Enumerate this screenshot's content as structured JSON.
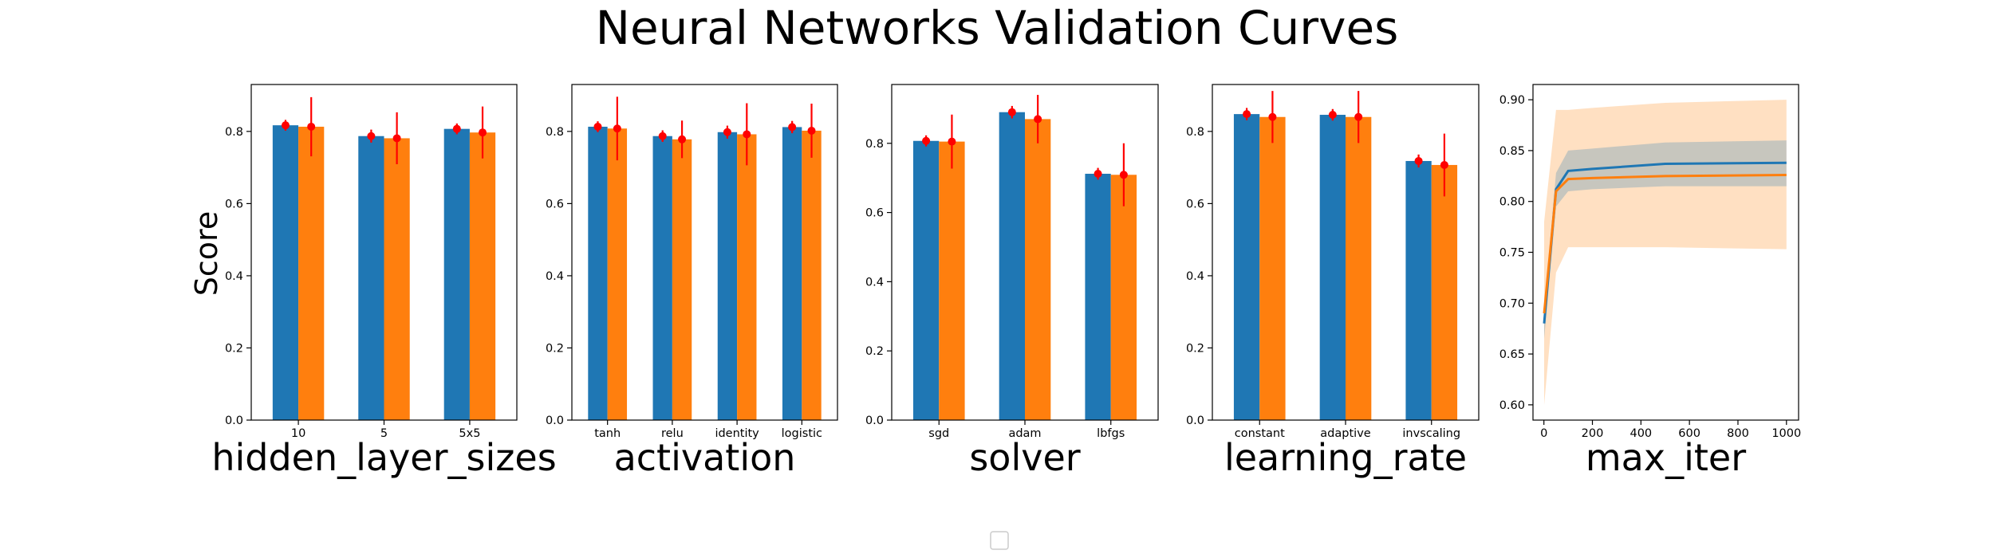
{
  "figure": {
    "title": "Neural Networks Validation Curves",
    "shared_ylabel": "Score",
    "legend_entries": []
  },
  "colors": {
    "train": "#1f77b4",
    "test": "#ff7f0e",
    "error": "#ff0000",
    "band_train": "#1f77b4",
    "band_test": "#ffbb78"
  },
  "chart_data": [
    {
      "type": "bar",
      "xlabel": "hidden_layer_sizes",
      "ylabel": "Score",
      "ylim": [
        0,
        0.93
      ],
      "yticks": [
        0.0,
        0.2,
        0.4,
        0.6,
        0.8
      ],
      "categories": [
        "10",
        "5",
        "5x5"
      ],
      "series": [
        {
          "values": [
            0.817,
            0.787,
            0.807
          ],
          "errors": [
            0.015,
            0.018,
            0.015
          ]
        },
        {
          "values": [
            0.813,
            0.781,
            0.797
          ],
          "errors": [
            0.082,
            0.072,
            0.072
          ]
        }
      ]
    },
    {
      "type": "bar",
      "xlabel": "activation",
      "ylabel": "",
      "ylim": [
        0,
        0.93
      ],
      "yticks": [
        0.0,
        0.2,
        0.4,
        0.6,
        0.8
      ],
      "categories": [
        "tanh",
        "relu",
        "identity",
        "logistic"
      ],
      "series": [
        {
          "values": [
            0.813,
            0.787,
            0.798,
            0.812
          ],
          "errors": [
            0.015,
            0.016,
            0.018,
            0.017
          ]
        },
        {
          "values": [
            0.808,
            0.778,
            0.792,
            0.802
          ],
          "errors": [
            0.088,
            0.052,
            0.086,
            0.075
          ]
        }
      ]
    },
    {
      "type": "bar",
      "xlabel": "solver",
      "ylabel": "",
      "ylim": [
        0,
        0.97
      ],
      "yticks": [
        0.0,
        0.2,
        0.4,
        0.6,
        0.8
      ],
      "categories": [
        "sgd",
        "adam",
        "lbfgs"
      ],
      "series": [
        {
          "values": [
            0.807,
            0.89,
            0.712
          ],
          "errors": [
            0.016,
            0.018,
            0.017
          ]
        },
        {
          "values": [
            0.805,
            0.87,
            0.709
          ],
          "errors": [
            0.078,
            0.07,
            0.091
          ]
        }
      ]
    },
    {
      "type": "bar",
      "xlabel": "learning_rate",
      "ylabel": "",
      "ylim": [
        0,
        0.93
      ],
      "yticks": [
        0.0,
        0.2,
        0.4,
        0.6,
        0.8
      ],
      "categories": [
        "constant",
        "adaptive",
        "invscaling"
      ],
      "series": [
        {
          "values": [
            0.848,
            0.846,
            0.718
          ],
          "errors": [
            0.017,
            0.016,
            0.018
          ]
        },
        {
          "values": [
            0.84,
            0.84,
            0.707
          ],
          "errors": [
            0.072,
            0.072,
            0.087
          ]
        }
      ]
    },
    {
      "type": "line",
      "xlabel": "max_iter",
      "ylabel": "",
      "xlim": [
        -45,
        1050
      ],
      "ylim": [
        0.585,
        0.915
      ],
      "xticks": [
        0,
        200,
        400,
        600,
        800,
        1000
      ],
      "yticks": [
        0.6,
        0.65,
        0.7,
        0.75,
        0.8,
        0.85,
        0.9
      ],
      "x": [
        1,
        50,
        100,
        200,
        500,
        1000
      ],
      "series": [
        {
          "values": [
            0.68,
            0.812,
            0.83,
            0.832,
            0.837,
            0.838
          ],
          "lower": [
            0.665,
            0.795,
            0.81,
            0.812,
            0.815,
            0.815
          ],
          "upper": [
            0.695,
            0.828,
            0.85,
            0.852,
            0.858,
            0.86
          ]
        },
        {
          "values": [
            0.69,
            0.81,
            0.822,
            0.823,
            0.825,
            0.826
          ],
          "lower": [
            0.6,
            0.73,
            0.755,
            0.755,
            0.755,
            0.753
          ],
          "upper": [
            0.78,
            0.89,
            0.89,
            0.892,
            0.897,
            0.9
          ]
        }
      ]
    }
  ]
}
